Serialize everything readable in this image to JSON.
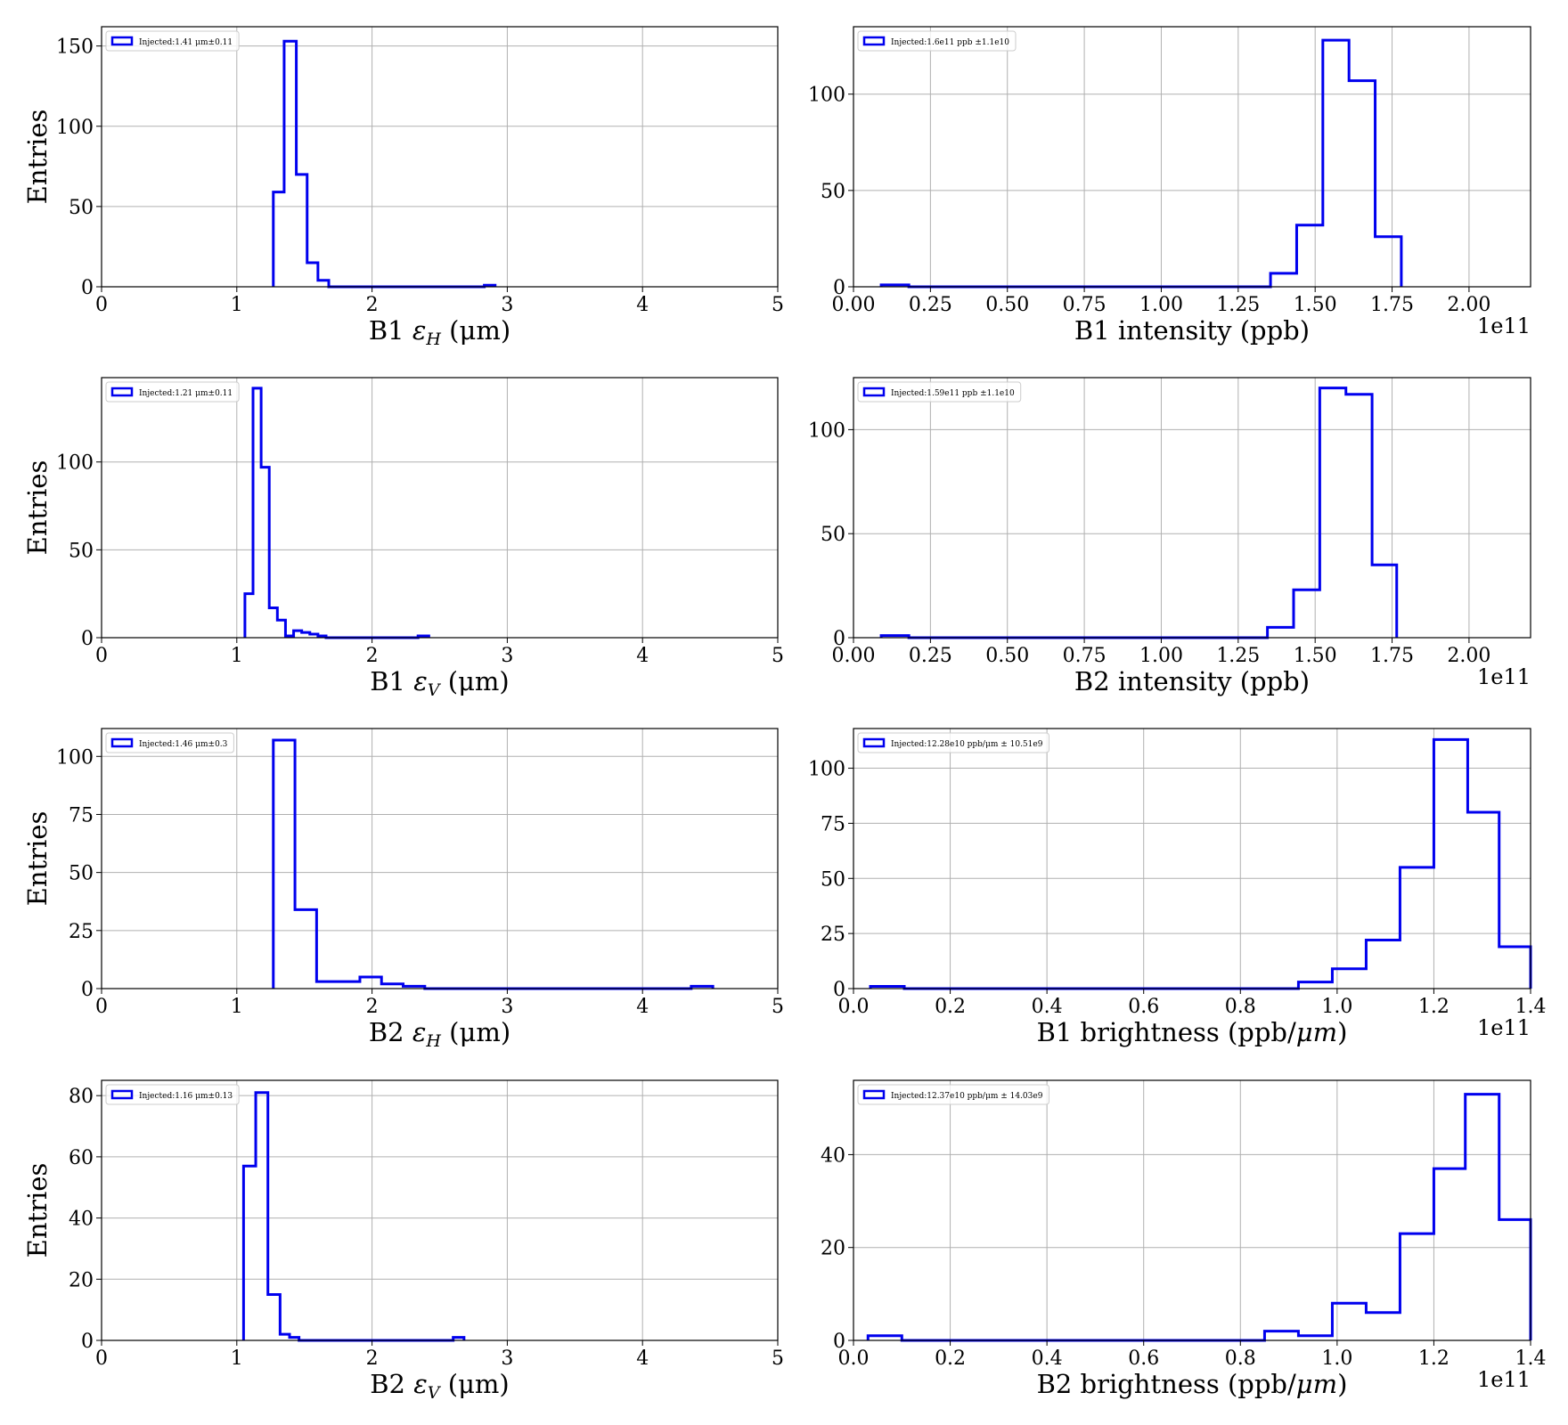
{
  "colors": {
    "histogram": "#0000ee",
    "grid": "#b0b0b0",
    "axis": "#000000"
  },
  "chart_data": [
    {
      "type": "histogram",
      "ylabel": "Entries",
      "xlabel_prefix": "B1 ",
      "xlabel_sym": "ε",
      "xlabel_sub": "H",
      "xlabel_suffix": "(μm)",
      "xlim": [
        0,
        5
      ],
      "ylim": [
        0,
        162
      ],
      "xticks": [
        0,
        1,
        2,
        3,
        4,
        5
      ],
      "yticks": [
        0,
        50,
        100,
        150
      ],
      "tick_decimals": 0,
      "offset_text": "",
      "legend": {
        "position": "top-left",
        "text": "Injected:1.41 μm±0.11"
      },
      "bins": [
        1.27,
        1.35,
        1.44,
        1.52,
        1.6,
        1.68,
        2.83,
        2.91
      ],
      "counts": [
        59,
        153,
        70,
        15,
        4,
        0,
        1
      ]
    },
    {
      "type": "histogram",
      "ylabel": "",
      "xlabel_prefix": "B1 intensity (ppb)",
      "xlabel_sym": "",
      "xlabel_sub": "",
      "xlabel_suffix": "",
      "xlim": [
        0,
        2.2
      ],
      "ylim": [
        0,
        135
      ],
      "xticks": [
        0,
        0.25,
        0.5,
        0.75,
        1.0,
        1.25,
        1.5,
        1.75,
        2.0
      ],
      "yticks": [
        0,
        50,
        100
      ],
      "tick_decimals": 2,
      "offset_text": "1e11",
      "legend": {
        "position": "top-left",
        "text": "Injected:1.6e11 ppb ±1.1e10"
      },
      "bins": [
        0.09,
        0.18,
        1.355,
        1.44,
        1.525,
        1.61,
        1.695,
        1.78
      ],
      "counts": [
        1,
        0,
        7,
        32,
        128,
        107,
        26
      ]
    },
    {
      "type": "histogram",
      "ylabel": "Entries",
      "xlabel_prefix": "B1 ",
      "xlabel_sym": "ε",
      "xlabel_sub": "V",
      "xlabel_suffix": "(μm)",
      "xlim": [
        0,
        5
      ],
      "ylim": [
        0,
        148
      ],
      "xticks": [
        0,
        1,
        2,
        3,
        4,
        5
      ],
      "yticks": [
        0,
        50,
        100
      ],
      "tick_decimals": 0,
      "offset_text": "",
      "legend": {
        "position": "top-left",
        "text": "Injected:1.21 μm±0.11"
      },
      "bins": [
        1.06,
        1.12,
        1.18,
        1.24,
        1.3,
        1.36,
        1.42,
        1.48,
        1.54,
        1.6,
        1.66,
        2.34,
        2.42
      ],
      "counts": [
        25,
        142,
        97,
        17,
        10,
        1,
        4,
        3,
        2,
        1,
        0,
        1
      ]
    },
    {
      "type": "histogram",
      "ylabel": "",
      "xlabel_prefix": "B2 intensity (ppb)",
      "xlabel_sym": "",
      "xlabel_sub": "",
      "xlabel_suffix": "",
      "xlim": [
        0,
        2.2
      ],
      "ylim": [
        0,
        125
      ],
      "xticks": [
        0,
        0.25,
        0.5,
        0.75,
        1.0,
        1.25,
        1.5,
        1.75,
        2.0
      ],
      "yticks": [
        0,
        50,
        100
      ],
      "tick_decimals": 2,
      "offset_text": "1e11",
      "legend": {
        "position": "top-left",
        "text": "Injected:1.59e11 ppb ±1.1e10"
      },
      "bins": [
        0.09,
        0.18,
        1.345,
        1.43,
        1.515,
        1.6,
        1.685,
        1.765
      ],
      "counts": [
        1,
        0,
        5,
        23,
        120,
        117,
        35
      ]
    },
    {
      "type": "histogram",
      "ylabel": "Entries",
      "xlabel_prefix": "B2 ",
      "xlabel_sym": "ε",
      "xlabel_sub": "H",
      "xlabel_suffix": "(μm)",
      "xlim": [
        0,
        5
      ],
      "ylim": [
        0,
        112
      ],
      "xticks": [
        0,
        1,
        2,
        3,
        4,
        5
      ],
      "yticks": [
        0,
        25,
        50,
        75,
        100
      ],
      "tick_decimals": 0,
      "offset_text": "",
      "legend": {
        "position": "top-left",
        "text": "Injected:1.46 μm±0.3"
      },
      "bins": [
        1.27,
        1.43,
        1.59,
        1.75,
        1.91,
        2.07,
        2.23,
        2.39,
        4.36,
        4.52
      ],
      "counts": [
        107,
        34,
        3,
        3,
        5,
        2,
        1,
        0,
        1
      ]
    },
    {
      "type": "histogram",
      "ylabel": "",
      "xlabel_prefix": "B1 brightness (ppb/",
      "xlabel_sym": "μm",
      "xlabel_sub": "",
      "xlabel_suffix": ")",
      "xlim": [
        0,
        1.4
      ],
      "ylim": [
        0,
        118
      ],
      "xticks": [
        0,
        0.2,
        0.4,
        0.6,
        0.8,
        1.0,
        1.2,
        1.4
      ],
      "yticks": [
        0,
        25,
        50,
        75,
        100
      ],
      "tick_decimals": 1,
      "offset_text": "1e11",
      "legend": {
        "position": "top-left",
        "text": "Injected:12.28e10 ppb/μm ± 10.51e9"
      },
      "bins": [
        0.035,
        0.105,
        0.92,
        0.99,
        1.06,
        1.13,
        1.2,
        1.27,
        1.335,
        1.4
      ],
      "counts": [
        1,
        0,
        3,
        9,
        22,
        55,
        113,
        80,
        19
      ]
    },
    {
      "type": "histogram",
      "ylabel": "Entries",
      "xlabel_prefix": "B2 ",
      "xlabel_sym": "ε",
      "xlabel_sub": "V",
      "xlabel_suffix": "(μm)",
      "xlim": [
        0,
        5
      ],
      "ylim": [
        0,
        85
      ],
      "xticks": [
        0,
        1,
        2,
        3,
        4,
        5
      ],
      "yticks": [
        0,
        20,
        40,
        60,
        80
      ],
      "tick_decimals": 0,
      "offset_text": "",
      "legend": {
        "position": "top-left",
        "text": "Injected:1.16 μm±0.13"
      },
      "bins": [
        1.05,
        1.14,
        1.23,
        1.32,
        1.39,
        1.46,
        2.6,
        2.68
      ],
      "counts": [
        57,
        81,
        15,
        2,
        1,
        0,
        1
      ]
    },
    {
      "type": "histogram",
      "ylabel": "",
      "xlabel_prefix": "B2 brightness (ppb/",
      "xlabel_sym": "μm",
      "xlabel_sub": "",
      "xlabel_suffix": ")",
      "xlim": [
        0,
        1.4
      ],
      "ylim": [
        0,
        56
      ],
      "xticks": [
        0,
        0.2,
        0.4,
        0.6,
        0.8,
        1.0,
        1.2,
        1.4
      ],
      "yticks": [
        0,
        20,
        40
      ],
      "tick_decimals": 1,
      "offset_text": "1e11",
      "legend": {
        "position": "top-left",
        "text": "Injected:12.37e10 ppb/μm ± 14.03e9"
      },
      "bins": [
        0.03,
        0.1,
        0.85,
        0.92,
        0.99,
        1.06,
        1.13,
        1.2,
        1.265,
        1.335,
        1.4
      ],
      "counts": [
        1,
        0,
        2,
        1,
        8,
        6,
        23,
        37,
        53,
        26
      ]
    }
  ]
}
